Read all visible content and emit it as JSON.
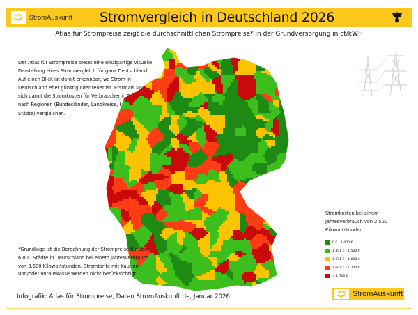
{
  "header": {
    "brand": "StromAuskunft",
    "title": "Stromvergleich in Deutschland 2026",
    "subtitle": "Atlas für Strompreise zeigt die durchschnittlichen Strompreise* in der Grundversorgung  in ct/kWH"
  },
  "description": "Der Atlas für Strompreise bietet eine einzigartige visuelle Darstellung eines Stromvergleich für ganz Deutschland. Auf einen Blick ist damit erkennbar, wo Strom in Deutschland eher günstig oder teuer ist. Erstmals lassen sich damit die Stromkosten für Verbraucher in Deutschland nach Regionen (Bundesländer, Landkreise, kreisfreie Städte) vergleichen.",
  "footnote": "*Grundlage ist die Berechnung der Strompreise für über 6.000 Städte in Deutschland bei einem Jahresverbrauch von 3.500 Kilowattstunden. Stromtarife mit Kaution und/oder Vorauskasse werden nicht berücksichtigt.",
  "credit": "Infografik: Atlas für Strompreise, Daten StromAuskunft.de, Januar 2026",
  "legend": {
    "title": "Stromkosten bei einem Jahresverbrauch von 3.500 Kilowattstunden",
    "items": [
      {
        "label": "0 € - 1 400 €",
        "color": "#1e8a14"
      },
      {
        "label": "1 401 € - 1 500 €",
        "color": "#3cbf1c"
      },
      {
        "label": "1 501 € - 1 600 €",
        "color": "#fcc400"
      },
      {
        "label": "1 601 € - 1 700 €",
        "color": "#fb3c14"
      },
      {
        "label": "> 1 700 €",
        "color": "#c80a0a"
      }
    ]
  },
  "footer_brand": "StromAuskunft"
}
